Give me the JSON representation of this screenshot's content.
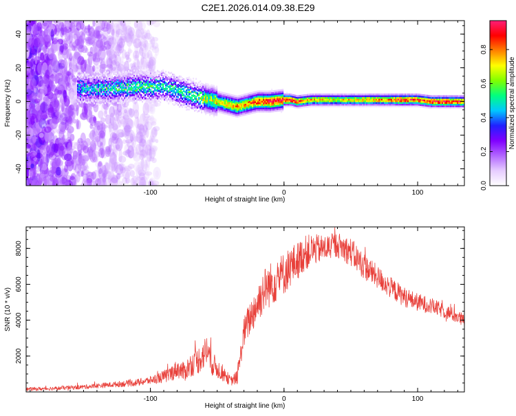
{
  "title": "C2E1.2026.014.09.38.E29",
  "chart_data": [
    {
      "type": "heatmap",
      "title": "C2E1.2026.014.09.38.E29",
      "xlabel": "Height of straight line (km)",
      "ylabel": "Frequency (Hz)",
      "xlim": [
        -193,
        135
      ],
      "ylim": [
        -50,
        48
      ],
      "xticks": [
        -100,
        0,
        100
      ],
      "yticks": [
        -40,
        -20,
        0,
        20,
        40
      ],
      "colorbar": {
        "label": "Normalized spectral amplitude",
        "range": [
          0,
          0.97
        ],
        "ticks": [
          0.0,
          0.2,
          0.4,
          0.6,
          0.8
        ],
        "tick_labels": [
          "0.0",
          "0.2",
          "0.4",
          "0.6",
          "0.8"
        ],
        "colors": [
          "#ffffff",
          "#e6ccff",
          "#b266ff",
          "#8000ff",
          "#2020ff",
          "#00c8ff",
          "#00ff80",
          "#80ff00",
          "#ffff00",
          "#ff8000",
          "#ff0000",
          "#ff1e78"
        ]
      },
      "ridge": {
        "x": [
          -150,
          -130,
          -110,
          -100,
          -90,
          -80,
          -70,
          -60,
          -50,
          -40,
          -35,
          -30,
          -20,
          -10,
          0,
          5,
          10,
          20,
          40,
          60,
          80,
          90,
          100,
          110,
          120,
          135
        ],
        "freq": [
          8,
          8,
          9,
          9,
          9,
          7,
          4,
          2,
          0,
          -2,
          -3,
          -2,
          0,
          0,
          1,
          1,
          0,
          1,
          1,
          1,
          1,
          1,
          1,
          0,
          0,
          0
        ],
        "peak_amplitude": [
          0.45,
          0.5,
          0.55,
          0.55,
          0.5,
          0.5,
          0.55,
          0.6,
          0.65,
          0.75,
          0.8,
          0.75,
          0.85,
          0.9,
          0.92,
          0.9,
          0.85,
          0.75,
          0.7,
          0.75,
          0.8,
          0.9,
          0.85,
          0.9,
          0.9,
          0.85
        ],
        "noise_region_end_x": -100
      }
    },
    {
      "type": "line",
      "xlabel": "Height of straight line (km)",
      "ylabel": "SNR (10 * v/v)",
      "xlim": [
        -193,
        135
      ],
      "ylim": [
        0,
        9200
      ],
      "xticks": [
        -100,
        0,
        100
      ],
      "yticks": [
        2000,
        4000,
        6000,
        8000
      ],
      "series": [
        {
          "name": "SNR",
          "color": "#e8403a",
          "x": [
            -193,
            -170,
            -150,
            -130,
            -110,
            -100,
            -90,
            -85,
            -80,
            -75,
            -70,
            -65,
            -60,
            -57,
            -55,
            -50,
            -45,
            -40,
            -35,
            -30,
            -25,
            -20,
            -15,
            -10,
            -5,
            0,
            5,
            10,
            15,
            20,
            30,
            40,
            50,
            60,
            70,
            80,
            90,
            100,
            110,
            120,
            130,
            135
          ],
          "y": [
            150,
            200,
            280,
            400,
            520,
            650,
            850,
            1000,
            1300,
            1100,
            1500,
            1700,
            2100,
            2400,
            1700,
            1300,
            1000,
            600,
            800,
            3300,
            4200,
            4900,
            5700,
            6000,
            6300,
            6600,
            7000,
            7300,
            7700,
            7900,
            8000,
            8200,
            7800,
            7000,
            6400,
            5800,
            5300,
            5000,
            4800,
            4500,
            4200,
            3900
          ],
          "spread": [
            200,
            220,
            250,
            300,
            400,
            450,
            700,
            900,
            1000,
            1100,
            1300,
            1500,
            1700,
            1900,
            1500,
            1100,
            900,
            500,
            800,
            1700,
            2000,
            2300,
            2500,
            2500,
            2500,
            2400,
            2300,
            2100,
            2000,
            1800,
            1500,
            1400,
            1600,
            1500,
            1300,
            1200,
            1100,
            1000,
            900,
            800,
            800,
            800
          ]
        }
      ]
    }
  ]
}
